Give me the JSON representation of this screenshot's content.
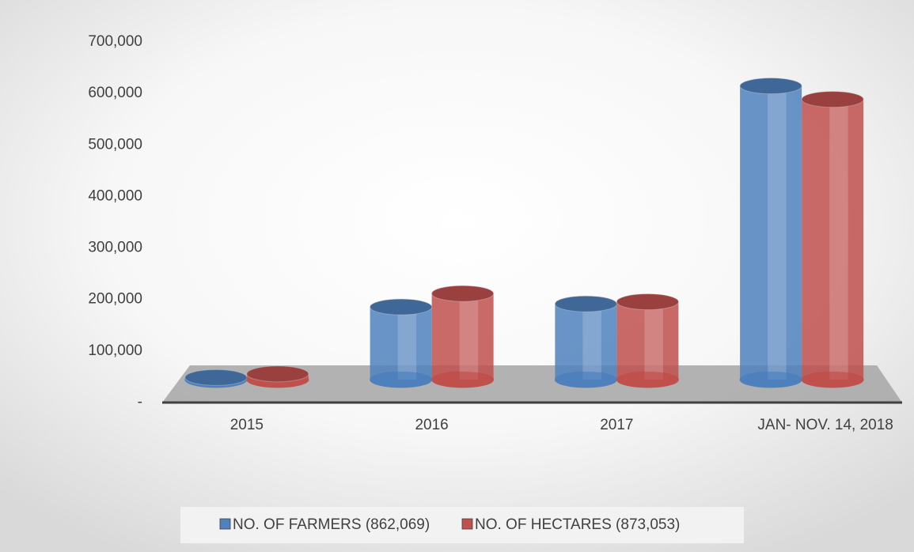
{
  "chart_data": {
    "type": "bar3d",
    "categories": [
      "2015",
      "2016",
      "2017",
      "JAN- NOV. 14, 2018"
    ],
    "series": [
      {
        "name": "NO. OF FARMERS (862,069)",
        "color": "#4f81bd",
        "values": [
          4000,
          141000,
          147000,
          570000
        ]
      },
      {
        "name": "NO. OF HECTARES (873,053)",
        "color": "#c0504d",
        "values": [
          11000,
          167000,
          151000,
          544000
        ]
      }
    ],
    "ylim": [
      0,
      700000
    ],
    "yticks": [
      {
        "value": 0,
        "label": "-"
      },
      {
        "value": 100000,
        "label": "100,000"
      },
      {
        "value": 200000,
        "label": "200,000"
      },
      {
        "value": 300000,
        "label": "300,000"
      },
      {
        "value": 400000,
        "label": "400,000"
      },
      {
        "value": 500000,
        "label": "500,000"
      },
      {
        "value": 600000,
        "label": "600,000"
      },
      {
        "value": 700000,
        "label": "700,000"
      }
    ],
    "legend": "bottom"
  }
}
